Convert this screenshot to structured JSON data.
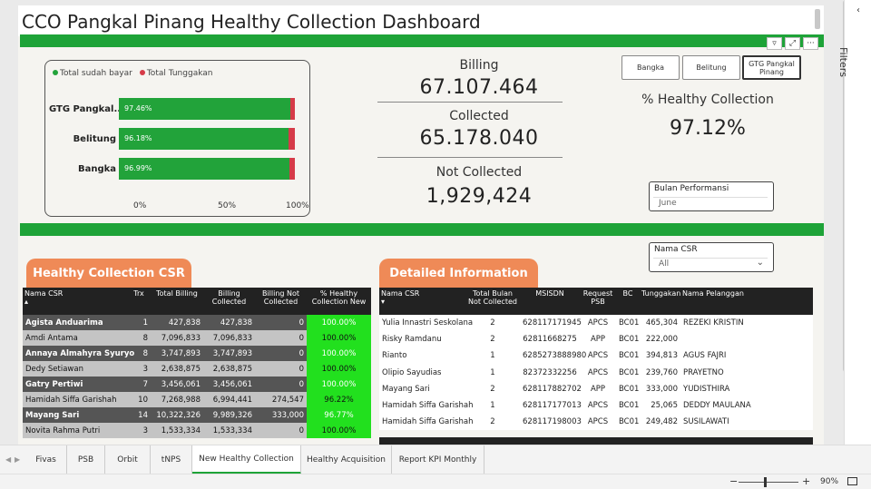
{
  "title": "CCO Pangkal Pinang Healthy Collection Dashboard",
  "visual_header_icons": [
    "filter-icon",
    "focus-mode-icon",
    "more-options-icon"
  ],
  "chart": {
    "legend": [
      {
        "label": "Total sudah bayar",
        "color": "#22a33a"
      },
      {
        "label": "Total Tunggakan",
        "color": "#d63b48"
      }
    ],
    "axis_ticks": [
      "0%",
      "50%",
      "100%"
    ]
  },
  "chart_data": {
    "type": "bar",
    "orientation": "horizontal",
    "stacked": true,
    "categories": [
      "GTG Pangkal...",
      "Belitung",
      "Bangka"
    ],
    "series": [
      {
        "name": "Total sudah bayar",
        "values": [
          97.46,
          96.18,
          96.99
        ],
        "labels": [
          "97.46%",
          "96.18%",
          "96.99%"
        ]
      },
      {
        "name": "Total Tunggakan",
        "values": [
          2.54,
          3.82,
          3.01
        ]
      }
    ],
    "xlim": [
      0,
      100
    ],
    "legend_position": "top-left"
  },
  "kpi": {
    "billing_label": "Billing",
    "billing_value": "67.107.464",
    "collected_label": "Collected",
    "collected_value": "65.178.040",
    "not_collected_label": "Not Collected",
    "not_collected_value": "1,929,424",
    "healthy_label": "% Healthy Collection",
    "healthy_value": "97.12%"
  },
  "slicer_buttons": [
    "Bangka",
    "Belitung",
    "GTG Pangkal Pinang"
  ],
  "bulan": {
    "title": "Bulan Performansi",
    "value": "June"
  },
  "nama_csr": {
    "title": "Nama CSR",
    "value": "All"
  },
  "csr_section": {
    "title": "Healthy Collection CSR",
    "headers": [
      "Nama CSR",
      "Trx",
      "Total Billing",
      "Billing Collected",
      "Billing Not Collected",
      "% Healthy Collection New"
    ],
    "rows": [
      [
        "Agista Anduarima",
        "1",
        "427,838",
        "427,838",
        "0",
        "100.00%"
      ],
      [
        "Amdi Antama",
        "8",
        "7,096,833",
        "7,096,833",
        "0",
        "100.00%"
      ],
      [
        "Annaya Almahyra Syuryo",
        "8",
        "3,747,893",
        "3,747,893",
        "0",
        "100.00%"
      ],
      [
        "Dedy Setiawan",
        "3",
        "2,638,875",
        "2,638,875",
        "0",
        "100.00%"
      ],
      [
        "Gatry Pertiwi",
        "7",
        "3,456,061",
        "3,456,061",
        "0",
        "100.00%"
      ],
      [
        "Hamidah Siffa Garishah",
        "10",
        "7,268,988",
        "6,994,441",
        "274,547",
        "96.22%"
      ],
      [
        "Mayang Sari",
        "14",
        "10,322,326",
        "9,989,326",
        "333,000",
        "96.77%"
      ],
      [
        "Novita Rahma Putri",
        "3",
        "1,533,334",
        "1,533,334",
        "0",
        "100.00%"
      ]
    ]
  },
  "detail_section": {
    "title": "Detailed Information",
    "headers": [
      "Nama CSR",
      "Total Bulan Not Collected",
      "MSISDN",
      "Request PSB",
      "BC",
      "Tunggakan",
      "Nama Pelanggan"
    ],
    "rows": [
      [
        "Yulia Innastri Seskolana",
        "2",
        "628117171945",
        "APCS",
        "BC01",
        "465,304",
        "REZEKI KRISTIN"
      ],
      [
        "Risky Ramdanu",
        "2",
        "62811668275",
        "APP",
        "BC01",
        "222,000",
        ""
      ],
      [
        "Rianto",
        "1",
        "6285273888980",
        "APCS",
        "BC01",
        "394,813",
        "AGUS FAJRI"
      ],
      [
        "Olipio Sayudias",
        "1",
        "82372332256",
        "APCS",
        "BC01",
        "239,760",
        "PRAYETNO"
      ],
      [
        "Mayang Sari",
        "2",
        "628117882702",
        "APP",
        "BC01",
        "333,000",
        "YUDISTHIRA"
      ],
      [
        "Hamidah Siffa Garishah",
        "1",
        "628117177013",
        "APCS",
        "BC01",
        "25,065",
        "DEDDY MAULANA"
      ],
      [
        "Hamidah Siffa Garishah",
        "2",
        "628117198003",
        "APCS",
        "BC01",
        "249,482",
        "SUSILAWATI"
      ]
    ]
  },
  "filters_label": "Filters",
  "tabs": [
    "Fivas",
    "PSB",
    "Orbit",
    "tNPS",
    "New Healthy Collection",
    "Healthy Acquisition",
    "Report KPI Monthly"
  ],
  "active_tab": "New Healthy Collection",
  "zoom": "90%"
}
